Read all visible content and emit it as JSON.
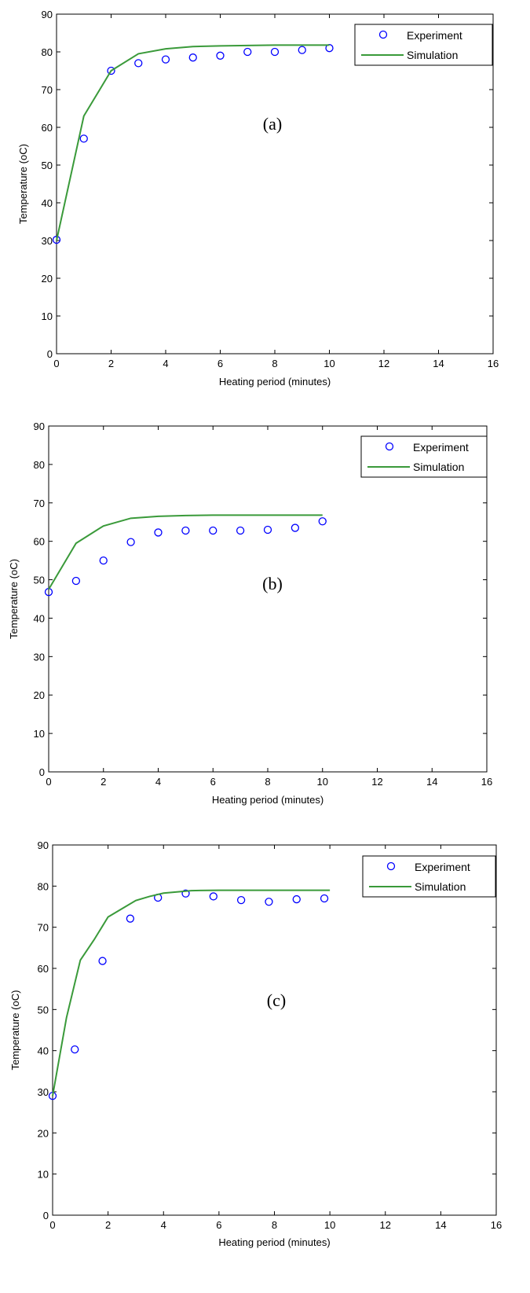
{
  "chart_data": [
    {
      "type": "scatter",
      "panel_label": "(a)",
      "xlabel": "Heating period (minutes)",
      "ylabel": "Temperature (oC)",
      "xlim": [
        0,
        16
      ],
      "ylim": [
        0,
        90
      ],
      "xticks": [
        0,
        2,
        4,
        6,
        8,
        10,
        12,
        14,
        16
      ],
      "yticks": [
        0,
        10,
        20,
        30,
        40,
        50,
        60,
        70,
        80,
        90
      ],
      "grid": false,
      "legend_position": "top-right",
      "series": [
        {
          "name": "Experiment",
          "type": "scatter",
          "color": "#0000ff",
          "marker": "o",
          "x": [
            0,
            1,
            2,
            3,
            4,
            5,
            6,
            7,
            8,
            9,
            10
          ],
          "y": [
            30.2,
            57,
            75,
            77,
            78,
            78.5,
            79,
            80,
            80,
            80.5,
            81
          ]
        },
        {
          "name": "Simulation",
          "type": "line",
          "color": "#3a9a3a",
          "x": [
            0,
            1,
            2,
            3,
            4,
            5,
            6,
            7,
            8,
            9,
            10
          ],
          "y": [
            30,
            63,
            75,
            79.5,
            80.8,
            81.4,
            81.6,
            81.7,
            81.8,
            81.8,
            81.8
          ]
        }
      ]
    },
    {
      "type": "scatter",
      "panel_label": "(b)",
      "xlabel": "Heating period (minutes)",
      "ylabel": "Temperature (oC)",
      "xlim": [
        0,
        16
      ],
      "ylim": [
        0,
        90
      ],
      "xticks": [
        0,
        2,
        4,
        6,
        8,
        10,
        12,
        14,
        16
      ],
      "yticks": [
        0,
        10,
        20,
        30,
        40,
        50,
        60,
        70,
        80,
        90
      ],
      "grid": false,
      "legend_position": "top-right",
      "series": [
        {
          "name": "Experiment",
          "type": "scatter",
          "color": "#0000ff",
          "marker": "o",
          "x": [
            0,
            1,
            2,
            3,
            4,
            5,
            6,
            7,
            8,
            9,
            10
          ],
          "y": [
            46.8,
            49.7,
            55,
            59.8,
            62.3,
            62.8,
            62.8,
            62.8,
            63,
            63.5,
            65.2
          ]
        },
        {
          "name": "Simulation",
          "type": "line",
          "color": "#3a9a3a",
          "x": [
            0,
            1,
            2,
            3,
            4,
            5,
            6,
            7,
            8,
            9,
            10
          ],
          "y": [
            47.5,
            59.5,
            64,
            66,
            66.5,
            66.7,
            66.8,
            66.8,
            66.8,
            66.8,
            66.8
          ]
        }
      ]
    },
    {
      "type": "scatter",
      "panel_label": "(c)",
      "xlabel": "Heating period (minutes)",
      "ylabel": "Temperature (oC)",
      "xlim": [
        0,
        16
      ],
      "ylim": [
        0,
        90
      ],
      "xticks": [
        0,
        2,
        4,
        6,
        8,
        10,
        12,
        14,
        16
      ],
      "yticks": [
        0,
        10,
        20,
        30,
        40,
        50,
        60,
        70,
        80,
        90
      ],
      "grid": false,
      "legend_position": "top-right",
      "series": [
        {
          "name": "Experiment",
          "type": "scatter",
          "color": "#0000ff",
          "marker": "o",
          "x": [
            0,
            0.8,
            1.8,
            2.8,
            3.8,
            4.8,
            5.8,
            6.8,
            7.8,
            8.8,
            9.8
          ],
          "y": [
            29,
            40.3,
            61.8,
            72.1,
            77.2,
            78.2,
            77.5,
            76.6,
            76.2,
            76.8,
            77
          ]
        },
        {
          "name": "Simulation",
          "type": "line",
          "color": "#3a9a3a",
          "x": [
            0,
            0.5,
            1,
            1.5,
            2,
            2.5,
            3,
            3.5,
            4,
            5,
            6,
            7,
            8,
            9,
            10
          ],
          "y": [
            29,
            48,
            62,
            67,
            72.5,
            74.5,
            76.5,
            77.5,
            78.3,
            78.9,
            79,
            79,
            79,
            79,
            79
          ]
        }
      ]
    }
  ]
}
